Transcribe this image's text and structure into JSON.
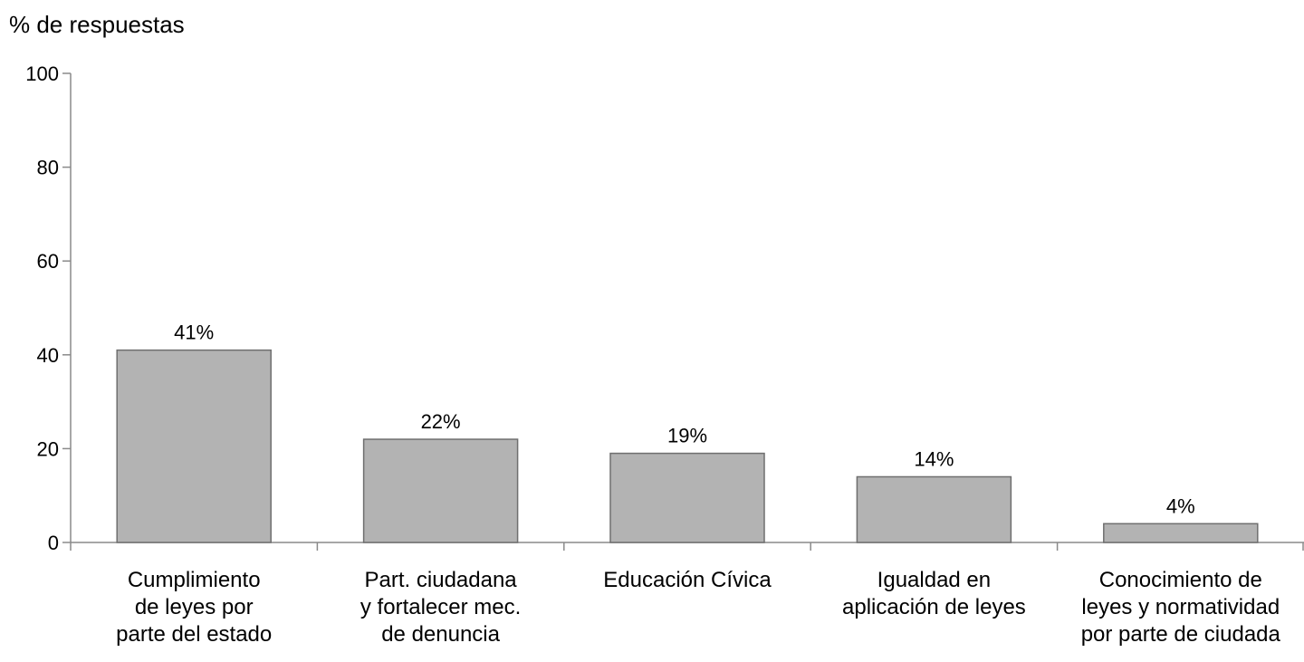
{
  "chart_data": {
    "type": "bar",
    "ylabel": "% de respuestas",
    "xlabel": "",
    "ylim": [
      0,
      100
    ],
    "yticks": [
      0,
      20,
      40,
      60,
      80,
      100
    ],
    "grid": false,
    "legend": "none",
    "bar_color": "#b3b3b3",
    "bar_edge_color": "#6f6f6f",
    "categories": [
      [
        "Cumplimiento",
        "de leyes por",
        "parte del estado"
      ],
      [
        "Part. ciudadana",
        "y fortalecer mec.",
        "de denuncia"
      ],
      [
        "Educación Cívica"
      ],
      [
        "Igualdad en",
        "aplicación de leyes"
      ],
      [
        "Conocimiento de",
        "leyes y normatividad",
        "por parte de ciudada"
      ]
    ],
    "values": [
      41,
      22,
      19,
      14,
      4
    ],
    "data_labels": [
      "41%",
      "22%",
      "19%",
      "14%",
      "4%"
    ]
  }
}
